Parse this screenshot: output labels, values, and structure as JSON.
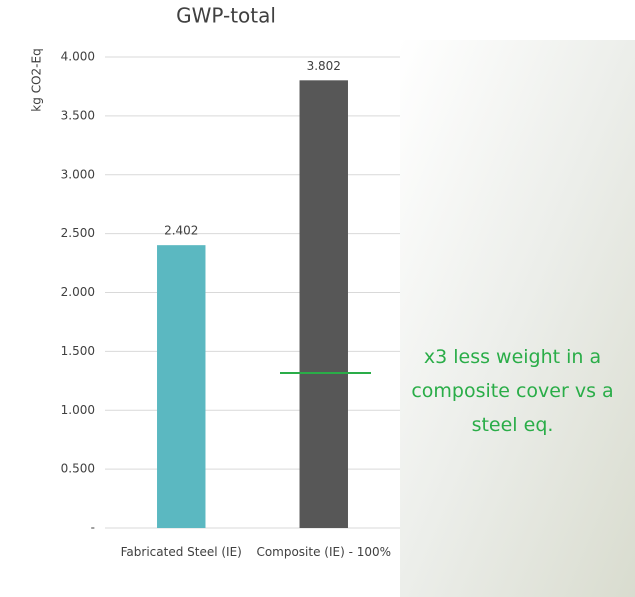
{
  "chart_data": {
    "type": "bar",
    "title": "GWP-total",
    "y_label": "kg CO2-Eq",
    "categories": [
      "Fabricated Steel (IE)",
      "Composite (IE) - 100%"
    ],
    "series": [
      {
        "name": "GWP-total",
        "colors": [
          "#5bb8c1",
          "#575757"
        ],
        "values": [
          2.402,
          3.802
        ]
      }
    ],
    "ylim": [
      0,
      4
    ],
    "yticks": [
      {
        "value": 0,
        "label": "-"
      },
      {
        "value": 0.5,
        "label": "0.500"
      },
      {
        "value": 1,
        "label": "1.000"
      },
      {
        "value": 1.5,
        "label": "1.500"
      },
      {
        "value": 2,
        "label": "2.000"
      },
      {
        "value": 2.5,
        "label": "2.500"
      },
      {
        "value": 3,
        "label": "3.000"
      },
      {
        "value": 3.5,
        "label": "3.500"
      },
      {
        "value": 4,
        "label": "4.000"
      }
    ],
    "grid": true,
    "annotation": "x3 less weight in a composite cover vs a steel eq."
  }
}
